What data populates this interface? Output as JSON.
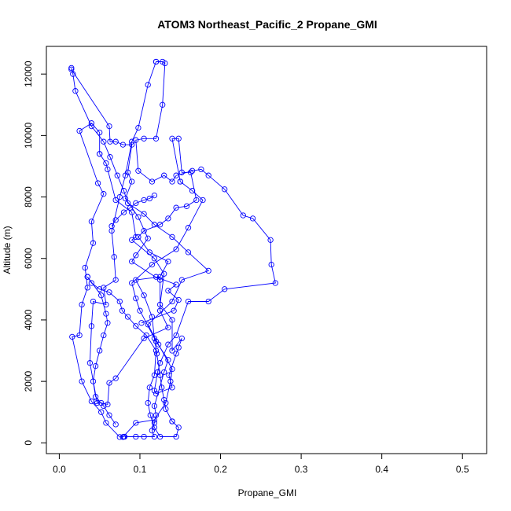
{
  "chart_data": {
    "type": "line",
    "title": "ATOM3 Northeast_Pacific_2 Propane_GMI",
    "xlabel": "Propane_GMI",
    "ylabel": "Altitude (m)",
    "xlim": [
      -0.016,
      0.53
    ],
    "ylim": [
      -350,
      12900
    ],
    "xticks": [
      0.0,
      0.1,
      0.2,
      0.3,
      0.4,
      0.5
    ],
    "xtick_labels": [
      "0.0",
      "0.1",
      "0.2",
      "0.3",
      "0.4",
      "0.5"
    ],
    "yticks": [
      0,
      2000,
      4000,
      6000,
      8000,
      10000,
      12000
    ],
    "ytick_labels": [
      "0",
      "2000",
      "4000",
      "6000",
      "8000",
      "10000",
      "12000"
    ],
    "marker": "open-circle",
    "grid": false,
    "legend": "none",
    "colors": {
      "series": "#0000ff",
      "axes": "#000000",
      "background": "#ffffff"
    },
    "series": [
      {
        "points": [
          [
            0.079,
            190
          ],
          [
            0.095,
            650
          ],
          [
            0.118,
            750
          ],
          [
            0.132,
            1300
          ],
          [
            0.138,
            2000
          ],
          [
            0.14,
            2400
          ],
          [
            0.123,
            3200
          ],
          [
            0.11,
            3850
          ],
          [
            0.14,
            4600
          ],
          [
            0.152,
            5300
          ],
          [
            0.185,
            5600
          ],
          [
            0.16,
            6200
          ],
          [
            0.14,
            6700
          ],
          [
            0.118,
            7100
          ],
          [
            0.105,
            7450
          ],
          [
            0.085,
            7800
          ],
          [
            0.08,
            8200
          ],
          [
            0.072,
            8700
          ],
          [
            0.063,
            9300
          ],
          [
            0.055,
            9800
          ],
          [
            0.04,
            10300
          ],
          [
            0.02,
            11450
          ],
          [
            0.017,
            12000
          ],
          [
            0.015,
            12200
          ]
        ]
      },
      {
        "points": [
          [
            0.015,
            12150
          ],
          [
            0.062,
            10300
          ],
          [
            0.063,
            9800
          ],
          [
            0.07,
            9800
          ],
          [
            0.079,
            9700
          ],
          [
            0.09,
            9700
          ],
          [
            0.085,
            8800
          ],
          [
            0.09,
            8500
          ],
          [
            0.082,
            7950
          ],
          [
            0.098,
            7350
          ],
          [
            0.11,
            6650
          ],
          [
            0.095,
            6100
          ],
          [
            0.09,
            5900
          ],
          [
            0.125,
            5300
          ],
          [
            0.125,
            4300
          ],
          [
            0.135,
            3750
          ],
          [
            0.105,
            3400
          ],
          [
            0.07,
            2100
          ],
          [
            0.062,
            1950
          ],
          [
            0.06,
            1250
          ],
          [
            0.052,
            1300
          ],
          [
            0.046,
            1350
          ]
        ]
      },
      {
        "points": [
          [
            0.047,
            1300
          ],
          [
            0.038,
            2600
          ],
          [
            0.04,
            3800
          ],
          [
            0.042,
            4600
          ],
          [
            0.058,
            4500
          ],
          [
            0.055,
            5050
          ],
          [
            0.07,
            5300
          ],
          [
            0.068,
            6050
          ],
          [
            0.065,
            6900
          ],
          [
            0.075,
            8000
          ],
          [
            0.082,
            8700
          ],
          [
            0.09,
            9800
          ],
          [
            0.098,
            10250
          ],
          [
            0.11,
            11650
          ],
          [
            0.12,
            12400
          ]
        ]
      },
      {
        "points": [
          [
            0.12,
            12400
          ],
          [
            0.128,
            12400
          ],
          [
            0.131,
            12350
          ],
          [
            0.128,
            11000
          ],
          [
            0.12,
            9900
          ],
          [
            0.105,
            9900
          ],
          [
            0.095,
            9850
          ],
          [
            0.098,
            8850
          ],
          [
            0.115,
            8500
          ],
          [
            0.13,
            8700
          ],
          [
            0.14,
            8500
          ],
          [
            0.145,
            8700
          ],
          [
            0.165,
            8850
          ],
          [
            0.176,
            8900
          ],
          [
            0.185,
            8700
          ],
          [
            0.205,
            8250
          ],
          [
            0.228,
            7400
          ],
          [
            0.24,
            7300
          ],
          [
            0.262,
            6600
          ],
          [
            0.263,
            5800
          ],
          [
            0.268,
            5200
          ],
          [
            0.205,
            5000
          ],
          [
            0.185,
            4600
          ],
          [
            0.16,
            4600
          ],
          [
            0.145,
            3500
          ],
          [
            0.135,
            3200
          ],
          [
            0.125,
            2600
          ],
          [
            0.122,
            2300
          ]
        ]
      },
      {
        "points": [
          [
            0.122,
            2300
          ],
          [
            0.118,
            1700
          ],
          [
            0.12,
            1600
          ],
          [
            0.14,
            1800
          ],
          [
            0.136,
            2200
          ],
          [
            0.145,
            2900
          ],
          [
            0.148,
            3100
          ],
          [
            0.152,
            3400
          ],
          [
            0.14,
            3000
          ],
          [
            0.14,
            4000
          ],
          [
            0.125,
            4500
          ],
          [
            0.13,
            5500
          ],
          [
            0.118,
            6000
          ],
          [
            0.09,
            6600
          ],
          [
            0.095,
            6700
          ],
          [
            0.09,
            7500
          ],
          [
            0.07,
            7900
          ],
          [
            0.06,
            8900
          ],
          [
            0.058,
            9100
          ],
          [
            0.05,
            9400
          ]
        ]
      },
      {
        "points": [
          [
            0.05,
            9400
          ],
          [
            0.05,
            10100
          ],
          [
            0.04,
            10400
          ],
          [
            0.025,
            10150
          ],
          [
            0.048,
            8450
          ],
          [
            0.055,
            8100
          ],
          [
            0.04,
            7200
          ],
          [
            0.042,
            6500
          ],
          [
            0.032,
            5700
          ],
          [
            0.035,
            5050
          ],
          [
            0.028,
            4500
          ],
          [
            0.025,
            3500
          ],
          [
            0.016,
            3450
          ],
          [
            0.028,
            2000
          ],
          [
            0.04,
            1350
          ],
          [
            0.052,
            1000
          ],
          [
            0.058,
            650
          ],
          [
            0.075,
            190
          ],
          [
            0.08,
            200
          ]
        ]
      },
      {
        "points": [
          [
            0.081,
            200
          ],
          [
            0.095,
            200
          ],
          [
            0.105,
            200
          ],
          [
            0.118,
            200
          ],
          [
            0.115,
            400
          ],
          [
            0.118,
            650
          ],
          [
            0.12,
            900
          ],
          [
            0.118,
            1200
          ],
          [
            0.13,
            2300
          ],
          [
            0.135,
            2700
          ],
          [
            0.12,
            3300
          ],
          [
            0.1,
            4300
          ],
          [
            0.095,
            4700
          ],
          [
            0.09,
            5200
          ],
          [
            0.115,
            5800
          ],
          [
            0.145,
            6300
          ],
          [
            0.16,
            7000
          ],
          [
            0.178,
            7900
          ],
          [
            0.165,
            8200
          ],
          [
            0.15,
            8500
          ]
        ]
      },
      {
        "points": [
          [
            0.15,
            8500
          ],
          [
            0.14,
            9900
          ],
          [
            0.148,
            9900
          ],
          [
            0.152,
            8800
          ],
          [
            0.163,
            8800
          ],
          [
            0.17,
            7900
          ],
          [
            0.158,
            7700
          ],
          [
            0.145,
            7650
          ],
          [
            0.135,
            7300
          ],
          [
            0.125,
            7100
          ],
          [
            0.105,
            6900
          ],
          [
            0.098,
            6700
          ],
          [
            0.112,
            6200
          ],
          [
            0.135,
            5900
          ],
          [
            0.125,
            5400
          ],
          [
            0.095,
            5300
          ],
          [
            0.105,
            4800
          ],
          [
            0.115,
            4100
          ],
          [
            0.118,
            3400
          ],
          [
            0.121,
            2900
          ],
          [
            0.125,
            2200
          ],
          [
            0.127,
            1800
          ],
          [
            0.13,
            1400
          ],
          [
            0.132,
            1100
          ],
          [
            0.14,
            700
          ]
        ]
      },
      {
        "points": [
          [
            0.14,
            700
          ],
          [
            0.148,
            500
          ],
          [
            0.145,
            200
          ],
          [
            0.125,
            200
          ],
          [
            0.118,
            500
          ],
          [
            0.113,
            900
          ],
          [
            0.11,
            1300
          ],
          [
            0.112,
            1800
          ],
          [
            0.118,
            2200
          ],
          [
            0.12,
            3000
          ],
          [
            0.108,
            3500
          ],
          [
            0.095,
            3800
          ],
          [
            0.085,
            4100
          ],
          [
            0.078,
            4300
          ],
          [
            0.075,
            4600
          ],
          [
            0.062,
            4900
          ],
          [
            0.05,
            5000
          ],
          [
            0.04,
            5200
          ],
          [
            0.035,
            5400
          ]
        ]
      },
      {
        "points": [
          [
            0.035,
            5400
          ],
          [
            0.052,
            4800
          ],
          [
            0.058,
            4200
          ],
          [
            0.06,
            3900
          ],
          [
            0.055,
            3500
          ],
          [
            0.05,
            3000
          ],
          [
            0.045,
            2500
          ],
          [
            0.042,
            2000
          ],
          [
            0.045,
            1500
          ],
          [
            0.055,
            1200
          ],
          [
            0.062,
            900
          ],
          [
            0.07,
            600
          ]
        ]
      },
      {
        "points": [
          [
            0.102,
            3900
          ],
          [
            0.142,
            4300
          ],
          [
            0.148,
            4650
          ],
          [
            0.135,
            4950
          ],
          [
            0.145,
            5150
          ],
          [
            0.12,
            5400
          ]
        ]
      },
      {
        "points": [
          [
            0.065,
            7050
          ],
          [
            0.07,
            7250
          ],
          [
            0.08,
            7500
          ],
          [
            0.088,
            7650
          ],
          [
            0.095,
            7800
          ],
          [
            0.105,
            7900
          ],
          [
            0.112,
            7950
          ],
          [
            0.118,
            8050
          ]
        ]
      }
    ]
  }
}
